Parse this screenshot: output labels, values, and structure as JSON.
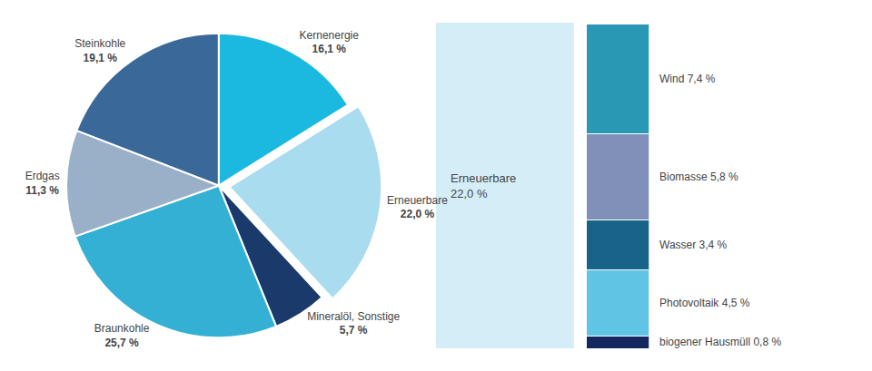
{
  "chart_data": [
    {
      "type": "pie",
      "categories": [
        "Kernenergie",
        "Erneuerbare",
        "Mineralöl, Sonstige",
        "Braunkohle",
        "Erdgas",
        "Steinkohle"
      ],
      "values": [
        16.1,
        22.0,
        5.7,
        25.7,
        11.3,
        19.1
      ],
      "value_labels": [
        "16,1 %",
        "22,0 %",
        "5,7 %",
        "25,7 %",
        "11,3 %",
        "19,1 %"
      ],
      "colors": [
        "#1BB8E0",
        "#AADCF0",
        "#1A3A6C",
        "#35B0D5",
        "#9AAFC8",
        "#3A6898"
      ],
      "data_labels": true
    },
    {
      "type": "bar",
      "title": "Erneuerbare",
      "subtitle": "22,0 %",
      "stacked": true,
      "categories": [
        null
      ],
      "series": [
        {
          "name": "Wind",
          "color": "#2898B4",
          "values": [
            7.4
          ],
          "value_labels": [
            "Wind 7,4 %"
          ]
        },
        {
          "name": "Biomasse",
          "color": "#8090B8",
          "values": [
            5.8
          ],
          "value_labels": [
            "Biomasse 5,8 %"
          ]
        },
        {
          "name": "Wasser",
          "color": "#186488",
          "values": [
            3.4
          ],
          "value_labels": [
            "Wasser 3,4 %"
          ]
        },
        {
          "name": "Photovoltaik",
          "color": "#60C4E4",
          "values": [
            4.5
          ],
          "value_labels": [
            "Photovoltaik 4,5 %"
          ]
        },
        {
          "name": "biogener Hausmüll",
          "color": "#142860",
          "values": [
            0.8
          ],
          "value_labels": [
            "biogener Hausmüll 0,8 %"
          ]
        }
      ],
      "ylim": [
        0,
        22
      ],
      "tick_labels": false,
      "data_labels": true
    }
  ]
}
